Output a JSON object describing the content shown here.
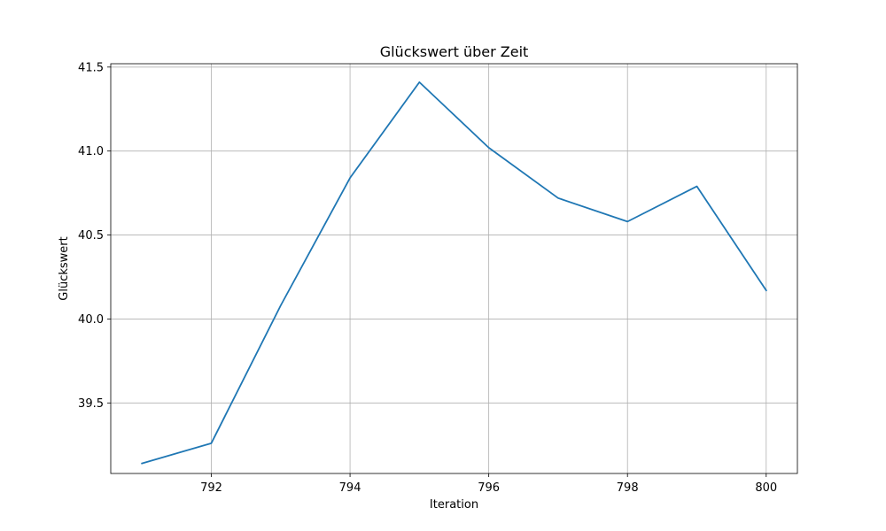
{
  "chart_data": {
    "type": "line",
    "title": "Glückswert über Zeit",
    "xlabel": "Iteration",
    "ylabel": "Glückswert",
    "xlim": [
      790.55,
      800.45
    ],
    "ylim": [
      39.08,
      41.52
    ],
    "xticks": [
      792,
      794,
      796,
      798,
      800
    ],
    "xtick_labels": [
      "792",
      "794",
      "796",
      "798",
      "800"
    ],
    "yticks": [
      39.5,
      40.0,
      40.5,
      41.0,
      41.5
    ],
    "ytick_labels": [
      "39.5",
      "40.0",
      "40.5",
      "41.0",
      "41.5"
    ],
    "grid": true,
    "series": [
      {
        "color": "#1f77b4",
        "x": [
          791,
          792,
          793,
          794,
          795,
          796,
          797,
          798,
          799,
          800
        ],
        "y": [
          39.14,
          39.26,
          40.08,
          40.84,
          41.41,
          41.02,
          40.72,
          40.58,
          40.79,
          40.17
        ]
      }
    ]
  }
}
